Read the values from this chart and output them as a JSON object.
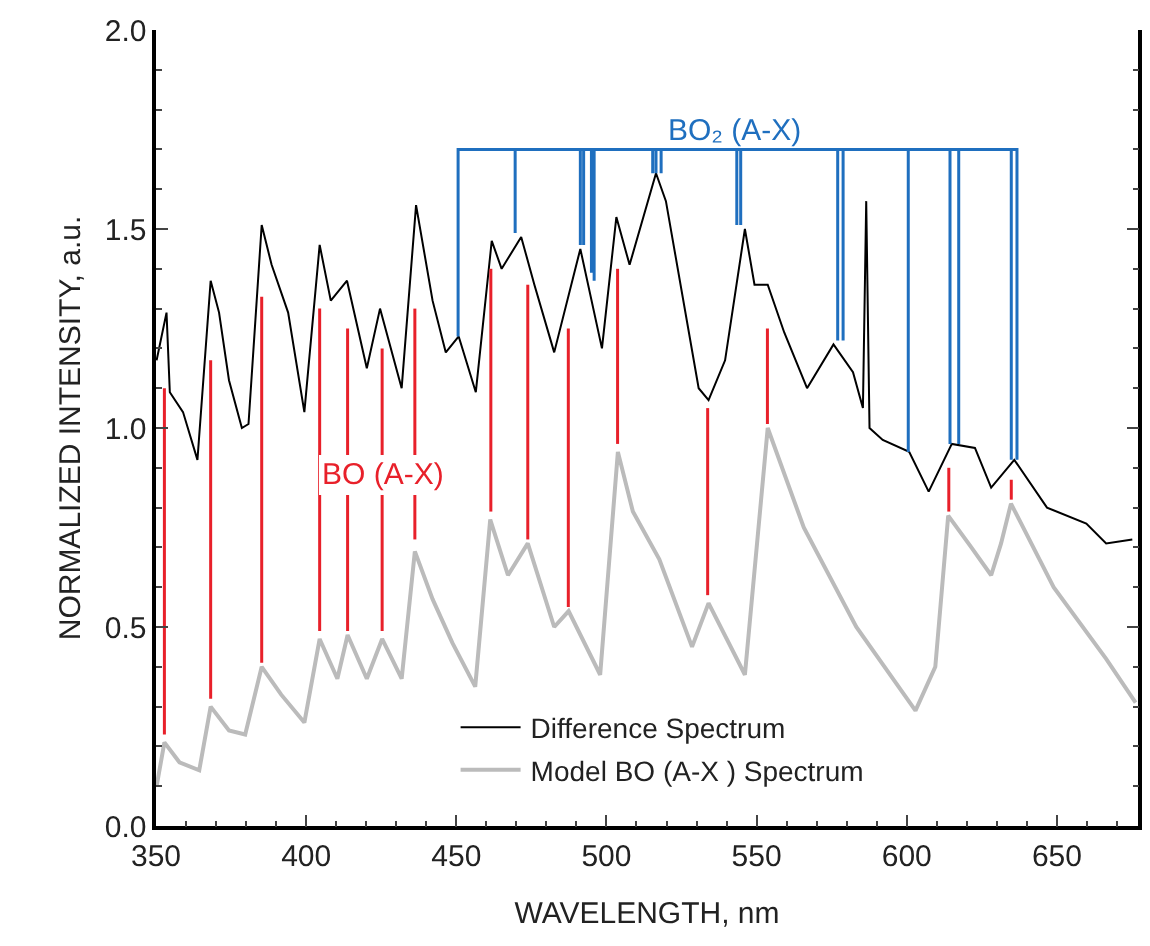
{
  "chart_data": {
    "type": "line",
    "xlabel": "WAVELENGTH, nm",
    "ylabel": "NORMALIZED INTENSITY, a.u.",
    "xlim": [
      350,
      677
    ],
    "xticks": [
      350,
      400,
      450,
      500,
      550,
      600,
      650
    ],
    "ylim": [
      0,
      2
    ],
    "yticks": [
      {
        "value": 0,
        "label": "0.0"
      },
      0.5,
      {
        "value": 1,
        "label": "1.0"
      },
      1.5,
      {
        "value": 2,
        "label": "2.0"
      }
    ],
    "legend": "bottom",
    "line_style": "solid",
    "marker": "none",
    "series": [
      {
        "name": "Difference Spectrum",
        "color": "#000000",
        "x": [
          350.2,
          353.5,
          354.6,
          359,
          363.8,
          368.2,
          371,
          374.3,
          378.6,
          380.8,
          385.2,
          388.5,
          394,
          399.4,
          404.5,
          408.2,
          413.6,
          420.2,
          424.6,
          431.8,
          436.6,
          442.1,
          446.5,
          450.8,
          456.5,
          461.8,
          465.1,
          471.6,
          476,
          482.6,
          491.3,
          498.5,
          503.3,
          507.7,
          516.5,
          519.8,
          530.7,
          534,
          539.5,
          546.1,
          549.3,
          553.7,
          559.2,
          566.8,
          575.6,
          582.1,
          585.4,
          586.5,
          587.6,
          592,
          600.8,
          607.3,
          615,
          622.7,
          628.1,
          635.8,
          646.7,
          659.8,
          666.4,
          675.1
        ],
        "values": [
          1.17,
          1.29,
          1.09,
          1.04,
          0.92,
          1.37,
          1.29,
          1.12,
          1.0,
          1.01,
          1.51,
          1.41,
          1.29,
          1.04,
          1.46,
          1.32,
          1.37,
          1.15,
          1.3,
          1.1,
          1.56,
          1.32,
          1.19,
          1.23,
          1.09,
          1.47,
          1.4,
          1.48,
          1.36,
          1.19,
          1.45,
          1.2,
          1.53,
          1.41,
          1.64,
          1.57,
          1.1,
          1.07,
          1.17,
          1.5,
          1.36,
          1.36,
          1.24,
          1.1,
          1.21,
          1.14,
          1.05,
          1.57,
          1.0,
          0.97,
          0.94,
          0.84,
          0.96,
          0.95,
          0.85,
          0.92,
          0.8,
          0.76,
          0.71,
          0.72
        ]
      },
      {
        "name": "Model BO (A-X ) Spectrum",
        "color": "#bbbbbb",
        "x": [
          350.2,
          352.8,
          357.8,
          364.4,
          368.2,
          374.3,
          379.7,
          385.2,
          391.7,
          399.4,
          404.5,
          410.4,
          413.8,
          420.2,
          425.3,
          431.8,
          436.2,
          442.1,
          448.7,
          456.3,
          461.3,
          467.2,
          473.8,
          482.6,
          487.4,
          497.9,
          503.8,
          508.8,
          517.6,
          528.5,
          534,
          546.1,
          553.7,
          565.7,
          583.2,
          602.9,
          609.5,
          613.8,
          621.5,
          628.1,
          631.4,
          634.7,
          648.9,
          666.4,
          676.2
        ],
        "values": [
          0.1,
          0.21,
          0.16,
          0.14,
          0.3,
          0.24,
          0.23,
          0.4,
          0.33,
          0.26,
          0.47,
          0.37,
          0.48,
          0.37,
          0.47,
          0.37,
          0.69,
          0.57,
          0.46,
          0.35,
          0.77,
          0.63,
          0.71,
          0.5,
          0.54,
          0.38,
          0.94,
          0.79,
          0.67,
          0.45,
          0.56,
          0.38,
          1.0,
          0.75,
          0.5,
          0.29,
          0.4,
          0.78,
          0.7,
          0.63,
          0.71,
          0.81,
          0.6,
          0.42,
          0.31
        ]
      },
      {
        "name": "BO (A-X)",
        "color": "#e8202a",
        "x": [
          352.8,
          352.8,
          null,
          368.2,
          368.2,
          null,
          385.2,
          385.2,
          null,
          404.5,
          404.5,
          null,
          413.8,
          413.8,
          null,
          425.3,
          425.3,
          null,
          436.2,
          436.2,
          null,
          461.5,
          461.5,
          null,
          473.8,
          473.8,
          null,
          487.3,
          487.3,
          null,
          503.7,
          503.7,
          null,
          533.7,
          533.7,
          null,
          553.6,
          553.6,
          null,
          614,
          614,
          null,
          634.8,
          634.8
        ],
        "values": [
          1.1,
          0.23,
          null,
          1.17,
          0.32,
          null,
          1.33,
          0.41,
          null,
          1.3,
          0.49,
          null,
          1.25,
          0.49,
          null,
          1.2,
          0.49,
          null,
          1.3,
          0.72,
          null,
          1.4,
          0.79,
          null,
          1.36,
          0.72,
          null,
          1.25,
          0.55,
          null,
          1.4,
          0.96,
          null,
          1.05,
          0.58,
          null,
          1.25,
          1.01,
          null,
          0.9,
          0.79,
          null,
          0.87,
          0.82
        ]
      },
      {
        "name": "BO₂ (A-X)",
        "color": "#1f6fbf",
        "x": [
          450.6,
          450.6,
          469.6,
          469.6,
          469.6,
          491.3,
          491.3,
          491.3,
          492.4,
          492.4,
          492.4,
          495,
          495,
          495,
          495.9,
          495.9,
          495.9,
          515.4,
          515.4,
          515.4,
          516.5,
          516.5,
          516.5,
          518.2,
          518.2,
          518.2,
          543.4,
          543.4,
          543.4,
          544.7,
          544.7,
          544.7,
          577,
          577,
          577,
          578.8,
          578.8,
          578.8,
          600.5,
          600.5,
          600.5,
          614.4,
          614.4,
          614.4,
          617.3,
          617.3,
          617.3,
          634.8,
          634.8,
          634.8,
          636.7,
          636.7
        ],
        "values": [
          1.23,
          1.7,
          1.7,
          1.49,
          1.7,
          1.7,
          1.46,
          1.7,
          1.7,
          1.46,
          1.7,
          1.7,
          1.39,
          1.7,
          1.7,
          1.37,
          1.7,
          1.7,
          1.64,
          1.7,
          1.7,
          1.64,
          1.7,
          1.7,
          1.64,
          1.7,
          1.7,
          1.51,
          1.7,
          1.7,
          1.51,
          1.7,
          1.7,
          1.22,
          1.7,
          1.7,
          1.22,
          1.7,
          1.7,
          0.94,
          1.7,
          1.7,
          0.96,
          1.7,
          1.7,
          0.96,
          1.7,
          1.7,
          0.92,
          1.7,
          1.7,
          0.92
        ]
      }
    ]
  }
}
